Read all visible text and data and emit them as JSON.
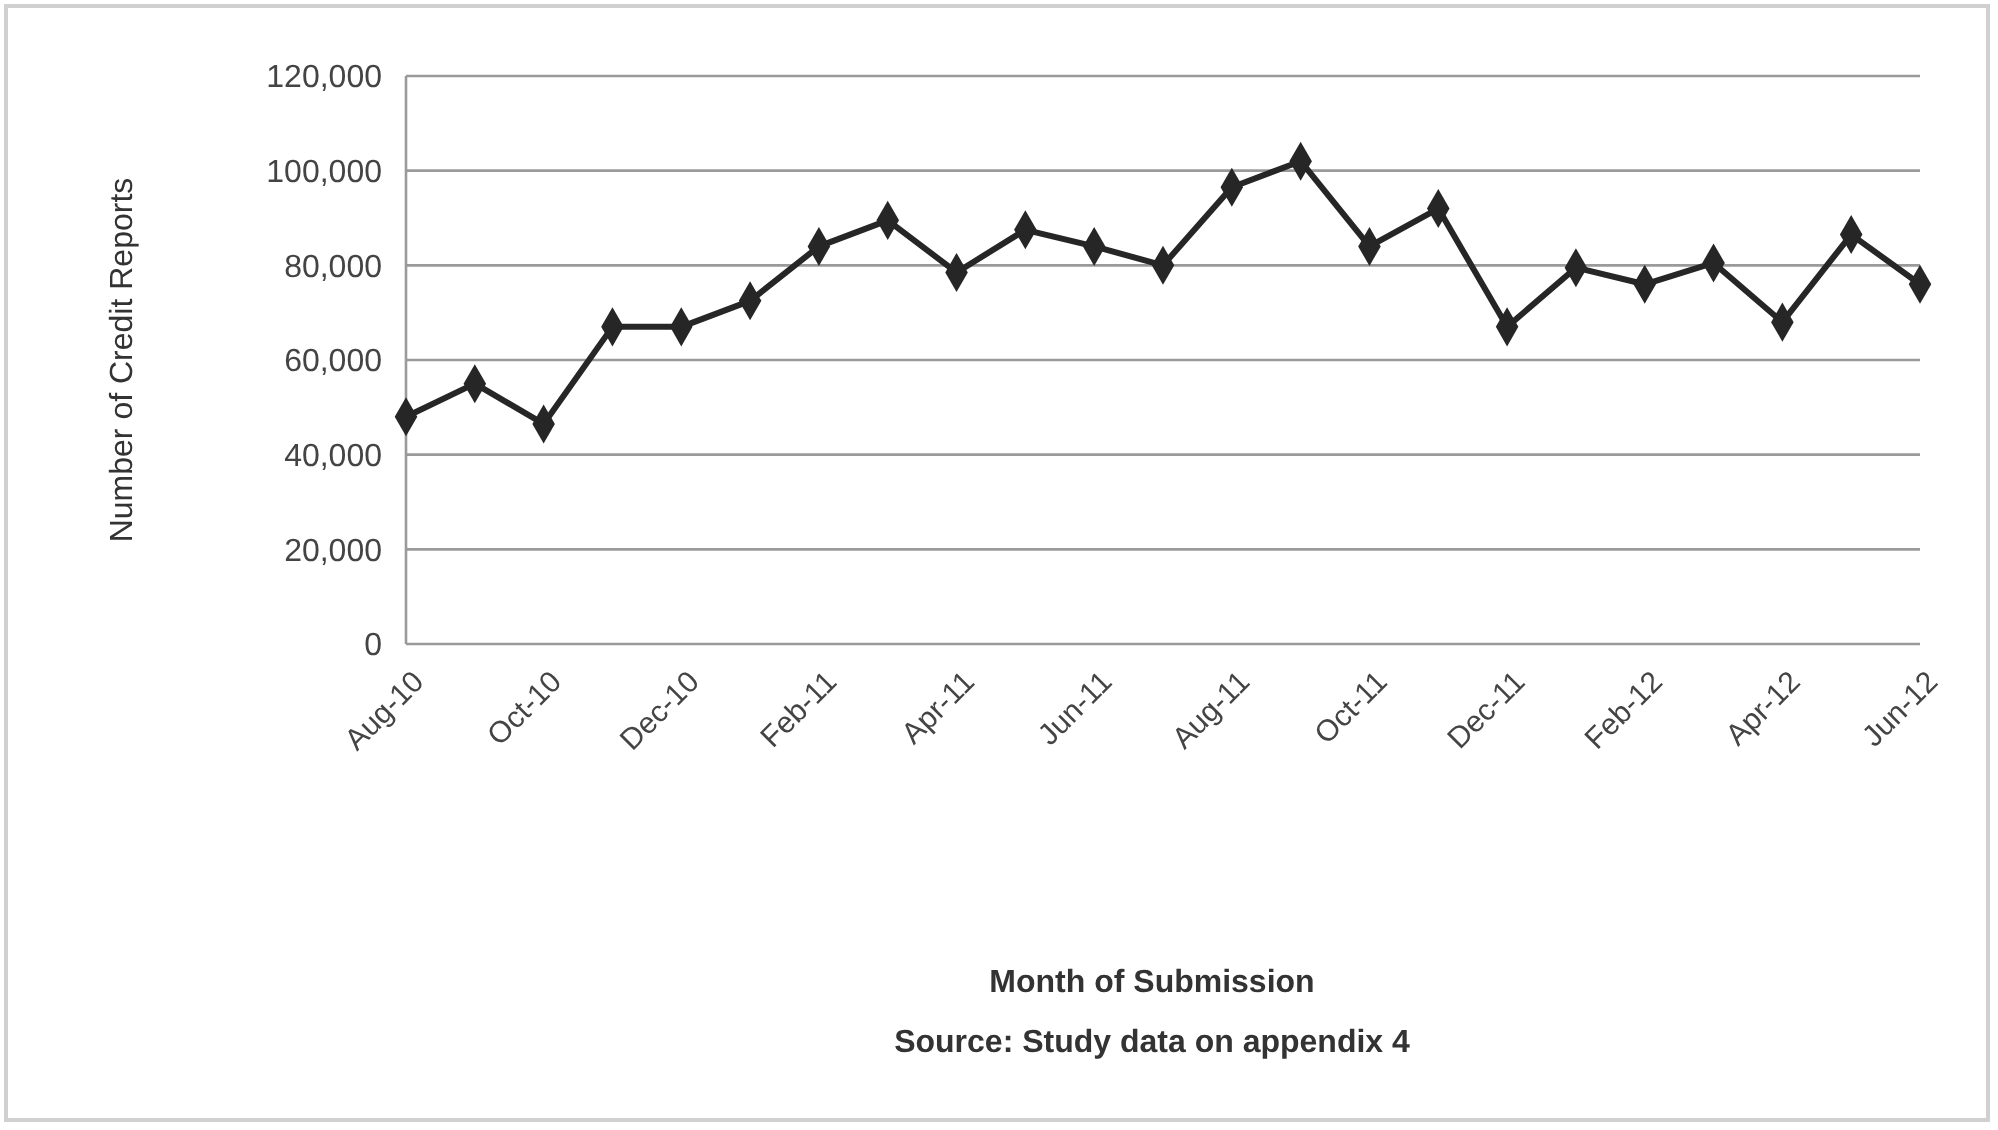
{
  "chart_data": {
    "type": "line",
    "ylabel": "Number of Credit Reports",
    "annotations": [
      "Month of Submission",
      "Source: Study data on appendix 4"
    ],
    "categories": [
      "Aug-10",
      null,
      "Oct-10",
      null,
      "Dec-10",
      null,
      "Feb-11",
      null,
      "Apr-11",
      null,
      "Jun-11",
      null,
      "Aug-11",
      null,
      "Oct-11",
      null,
      "Dec-11",
      null,
      "Feb-12",
      null,
      "Apr-12",
      null,
      "Jun-12"
    ],
    "series": [
      {
        "color": "#262626",
        "values": [
          48000,
          55000,
          46500,
          67000,
          67000,
          72500,
          84000,
          89500,
          78500,
          87500,
          84000,
          80000,
          96500,
          102000,
          84000,
          92000,
          67000,
          79500,
          76000,
          80500,
          68000,
          86500,
          76000
        ]
      }
    ],
    "ylim": [
      0,
      120000
    ],
    "yticks": [
      {
        "value": 0,
        "label": "0"
      },
      {
        "value": 20000,
        "label": "20,000"
      },
      {
        "value": 40000,
        "label": "40,000"
      },
      {
        "value": 60000,
        "label": "60,000"
      },
      {
        "value": 80000,
        "label": "80,000"
      },
      {
        "value": 100000,
        "label": "100,000"
      },
      {
        "value": 120000,
        "label": "120,000"
      }
    ],
    "grid": "y",
    "marker": "diamond",
    "line_style": "solid"
  }
}
